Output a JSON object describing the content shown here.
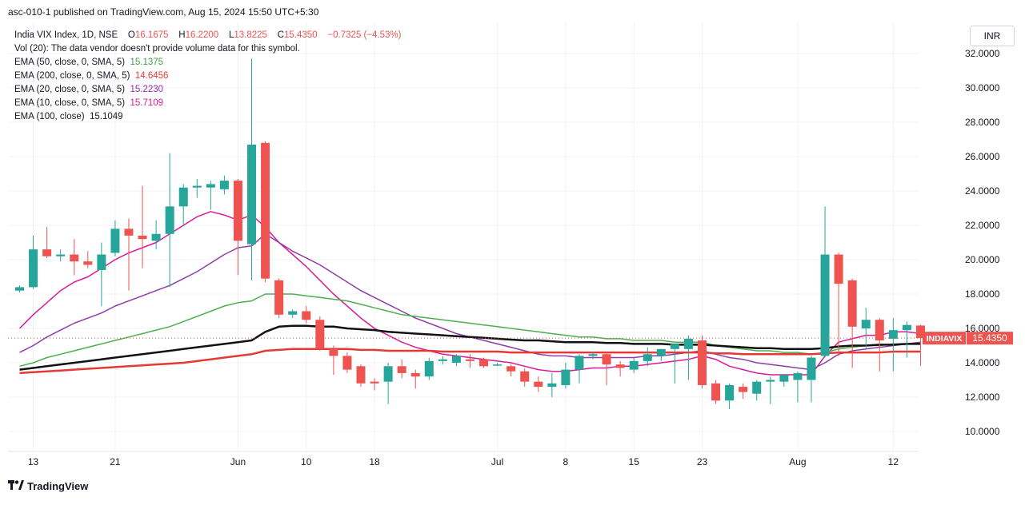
{
  "header": {
    "published": "asc-010-1 published on TradingView.com, Aug 15, 2024 15:50 UTC+5:30"
  },
  "legend": {
    "symbol": "India VIX Index, 1D, NSE",
    "ohlc": {
      "o_label": "O",
      "o": "16.1675",
      "h_label": "H",
      "h": "16.2200",
      "l_label": "L",
      "l": "13.8225",
      "c_label": "C",
      "c": "15.4350",
      "change": "−0.7325 (−4.53%)"
    },
    "volume_note": "Vol (20): The data vendor doesn't provide volume data for this symbol.",
    "indicators": [
      {
        "label": "EMA (50, close, 0, SMA, 5)",
        "value": "15.1375",
        "color": "#43a047"
      },
      {
        "label": "EMA (200, close, 0, SMA, 5)",
        "value": "14.6456",
        "color": "#e53935"
      },
      {
        "label": "EMA (20, close, 0, SMA, 5)",
        "value": "15.2230",
        "color": "#9c27b0"
      },
      {
        "label": "EMA (10, close, 0, SMA, 5)",
        "value": "15.7109",
        "color": "#d81b9a"
      },
      {
        "label": "EMA (100, close)",
        "value": "15.1049",
        "color": "#131722"
      }
    ]
  },
  "currency": "INR",
  "price_tag": {
    "symbol": "INDIAVIX",
    "value": "15.4350"
  },
  "footer": {
    "brand": "TradingView"
  },
  "colors": {
    "up": "#26a69a",
    "down": "#ef5350",
    "grid": "#f0f3fa",
    "tag": "#ef5350"
  },
  "chart_data": {
    "type": "candlestick",
    "y_axis": {
      "side": "right",
      "ylim": [
        9.0,
        32.8
      ],
      "ticks": [
        "32.0000",
        "30.0000",
        "28.0000",
        "26.0000",
        "24.0000",
        "22.0000",
        "20.0000",
        "18.0000",
        "16.0000",
        "14.0000",
        "12.0000",
        "10.0000"
      ],
      "tick_values": [
        32,
        30,
        28,
        26,
        24,
        22,
        20,
        18,
        16,
        14,
        12,
        10
      ]
    },
    "x_axis": {
      "tick_labels": [
        {
          "label": "13",
          "index": 1
        },
        {
          "label": "21",
          "index": 7
        },
        {
          "label": "Jun",
          "index": 16
        },
        {
          "label": "10",
          "index": 21
        },
        {
          "label": "18",
          "index": 26
        },
        {
          "label": "Jul",
          "index": 35
        },
        {
          "label": "8",
          "index": 40
        },
        {
          "label": "15",
          "index": 45
        },
        {
          "label": "23",
          "index": 50
        },
        {
          "label": "Aug",
          "index": 57
        },
        {
          "label": "12",
          "index": 64
        }
      ]
    },
    "grid": true,
    "candles": [
      {
        "o": 18.2,
        "h": 18.5,
        "l": 18.1,
        "c": 18.4
      },
      {
        "o": 18.4,
        "h": 21.4,
        "l": 18.3,
        "c": 20.6
      },
      {
        "o": 20.6,
        "h": 21.9,
        "l": 20.1,
        "c": 20.2
      },
      {
        "o": 20.2,
        "h": 20.6,
        "l": 19.9,
        "c": 20.3
      },
      {
        "o": 20.3,
        "h": 21.2,
        "l": 19.1,
        "c": 19.9
      },
      {
        "o": 19.9,
        "h": 20.5,
        "l": 19.5,
        "c": 19.7
      },
      {
        "o": 19.4,
        "h": 21.0,
        "l": 17.3,
        "c": 20.3
      },
      {
        "o": 20.4,
        "h": 22.3,
        "l": 20.2,
        "c": 21.8
      },
      {
        "o": 21.8,
        "h": 22.4,
        "l": 18.2,
        "c": 21.4
      },
      {
        "o": 21.4,
        "h": 24.3,
        "l": 19.5,
        "c": 21.2
      },
      {
        "o": 21.1,
        "h": 22.3,
        "l": 20.6,
        "c": 21.5
      },
      {
        "o": 21.5,
        "h": 26.2,
        "l": 18.4,
        "c": 23.1
      },
      {
        "o": 23.1,
        "h": 24.4,
        "l": 22.0,
        "c": 24.2
      },
      {
        "o": 24.2,
        "h": 24.7,
        "l": 23.6,
        "c": 24.3
      },
      {
        "o": 24.2,
        "h": 24.6,
        "l": 22.9,
        "c": 24.4
      },
      {
        "o": 24.1,
        "h": 24.9,
        "l": 23.8,
        "c": 24.6
      },
      {
        "o": 24.6,
        "h": 24.7,
        "l": 19.1,
        "c": 21.1
      },
      {
        "o": 20.9,
        "h": 31.7,
        "l": 18.8,
        "c": 26.7
      },
      {
        "o": 26.8,
        "h": 26.9,
        "l": 18.7,
        "c": 18.9
      },
      {
        "o": 18.8,
        "h": 18.9,
        "l": 16.6,
        "c": 16.8
      },
      {
        "o": 16.8,
        "h": 17.1,
        "l": 16.6,
        "c": 17.0
      },
      {
        "o": 17.0,
        "h": 17.3,
        "l": 16.3,
        "c": 16.5
      },
      {
        "o": 16.5,
        "h": 16.7,
        "l": 14.7,
        "c": 14.8
      },
      {
        "o": 14.8,
        "h": 15.0,
        "l": 13.3,
        "c": 14.4
      },
      {
        "o": 14.4,
        "h": 14.6,
        "l": 13.4,
        "c": 13.6
      },
      {
        "o": 13.8,
        "h": 13.9,
        "l": 12.6,
        "c": 12.8
      },
      {
        "o": 12.9,
        "h": 13.1,
        "l": 12.4,
        "c": 12.8
      },
      {
        "o": 12.9,
        "h": 14.0,
        "l": 11.6,
        "c": 13.8
      },
      {
        "o": 13.8,
        "h": 14.2,
        "l": 13.1,
        "c": 13.4
      },
      {
        "o": 13.4,
        "h": 13.6,
        "l": 12.5,
        "c": 13.2
      },
      {
        "o": 13.2,
        "h": 14.3,
        "l": 13.0,
        "c": 14.1
      },
      {
        "o": 14.1,
        "h": 14.4,
        "l": 13.9,
        "c": 14.2
      },
      {
        "o": 14.0,
        "h": 14.5,
        "l": 13.8,
        "c": 14.4
      },
      {
        "o": 14.2,
        "h": 14.5,
        "l": 13.7,
        "c": 14.1
      },
      {
        "o": 14.2,
        "h": 14.3,
        "l": 13.7,
        "c": 13.8
      },
      {
        "o": 13.9,
        "h": 14.0,
        "l": 13.8,
        "c": 13.9
      },
      {
        "o": 13.8,
        "h": 13.9,
        "l": 13.2,
        "c": 13.5
      },
      {
        "o": 13.5,
        "h": 13.7,
        "l": 12.6,
        "c": 12.9
      },
      {
        "o": 12.9,
        "h": 13.2,
        "l": 12.3,
        "c": 12.6
      },
      {
        "o": 12.6,
        "h": 13.4,
        "l": 12.0,
        "c": 12.8
      },
      {
        "o": 12.7,
        "h": 14.0,
        "l": 12.5,
        "c": 13.6
      },
      {
        "o": 13.6,
        "h": 14.5,
        "l": 12.8,
        "c": 14.4
      },
      {
        "o": 14.4,
        "h": 14.6,
        "l": 14.2,
        "c": 14.5
      },
      {
        "o": 14.5,
        "h": 14.6,
        "l": 12.7,
        "c": 13.9
      },
      {
        "o": 13.9,
        "h": 14.1,
        "l": 13.2,
        "c": 13.7
      },
      {
        "o": 13.6,
        "h": 14.3,
        "l": 13.4,
        "c": 14.1
      },
      {
        "o": 14.1,
        "h": 14.9,
        "l": 13.8,
        "c": 14.5
      },
      {
        "o": 14.4,
        "h": 14.8,
        "l": 14.1,
        "c": 14.8
      },
      {
        "o": 14.8,
        "h": 15.0,
        "l": 12.8,
        "c": 15.1
      },
      {
        "o": 14.8,
        "h": 15.6,
        "l": 13.0,
        "c": 15.4
      },
      {
        "o": 15.3,
        "h": 15.6,
        "l": 12.5,
        "c": 12.7
      },
      {
        "o": 12.8,
        "h": 13.0,
        "l": 11.6,
        "c": 11.8
      },
      {
        "o": 11.8,
        "h": 12.8,
        "l": 11.3,
        "c": 12.7
      },
      {
        "o": 12.6,
        "h": 12.8,
        "l": 11.9,
        "c": 12.3
      },
      {
        "o": 12.2,
        "h": 13.0,
        "l": 11.8,
        "c": 12.9
      },
      {
        "o": 12.9,
        "h": 13.2,
        "l": 11.6,
        "c": 13.0
      },
      {
        "o": 12.9,
        "h": 13.2,
        "l": 12.6,
        "c": 13.3
      },
      {
        "o": 13.0,
        "h": 13.5,
        "l": 11.7,
        "c": 13.4
      },
      {
        "o": 13.0,
        "h": 14.4,
        "l": 11.7,
        "c": 14.3
      },
      {
        "o": 14.4,
        "h": 23.1,
        "l": 14.3,
        "c": 20.3
      },
      {
        "o": 20.3,
        "h": 20.4,
        "l": 14.4,
        "c": 18.6
      },
      {
        "o": 18.8,
        "h": 18.9,
        "l": 13.7,
        "c": 16.1
      },
      {
        "o": 16.0,
        "h": 17.2,
        "l": 14.8,
        "c": 16.5
      },
      {
        "o": 16.5,
        "h": 16.6,
        "l": 13.5,
        "c": 15.3
      },
      {
        "o": 15.4,
        "h": 16.6,
        "l": 13.5,
        "c": 15.9
      },
      {
        "o": 15.9,
        "h": 16.4,
        "l": 14.3,
        "c": 16.2
      },
      {
        "o": 16.1675,
        "h": 16.22,
        "l": 13.8225,
        "c": 15.435
      }
    ],
    "ema_lines": [
      {
        "label": "EMA (10, close, 0, SMA, 5)",
        "color": "#d81b9a",
        "width": 1.5,
        "values": [
          16.0,
          16.8,
          17.5,
          18.2,
          18.7,
          19.0,
          19.5,
          20.0,
          20.4,
          20.7,
          21.0,
          21.5,
          22.0,
          22.5,
          22.8,
          22.6,
          22.3,
          22.6,
          21.9,
          21.0,
          20.3,
          19.6,
          18.8,
          18.0,
          17.3,
          16.6,
          16.0,
          15.6,
          15.2,
          14.9,
          14.7,
          14.5,
          14.4,
          14.3,
          14.2,
          14.1,
          14.0,
          13.8,
          13.6,
          13.5,
          13.5,
          13.6,
          13.7,
          13.7,
          13.8,
          13.8,
          13.9,
          14.0,
          14.1,
          14.2,
          14.4,
          14.2,
          13.8,
          13.6,
          13.4,
          13.3,
          13.3,
          13.3,
          13.3,
          14.4,
          15.2,
          15.4,
          15.6,
          15.6,
          15.8,
          15.8,
          15.7
        ]
      },
      {
        "label": "EMA (20, close, 0, SMA, 5)",
        "color": "#8e3ca8",
        "width": 1.5,
        "values": [
          14.6,
          15.0,
          15.5,
          15.9,
          16.3,
          16.6,
          16.9,
          17.3,
          17.6,
          17.9,
          18.2,
          18.5,
          18.9,
          19.3,
          19.8,
          20.3,
          20.7,
          20.8,
          21.5,
          21.0,
          20.5,
          20.1,
          19.7,
          19.2,
          18.7,
          18.2,
          17.8,
          17.4,
          17.0,
          16.6,
          16.3,
          16.0,
          15.7,
          15.5,
          15.3,
          15.1,
          14.9,
          14.7,
          14.5,
          14.4,
          14.4,
          14.3,
          14.3,
          14.3,
          14.3,
          14.3,
          14.4,
          14.4,
          14.5,
          14.6,
          14.7,
          14.5,
          14.3,
          14.2,
          14.0,
          13.9,
          13.8,
          13.7,
          13.6,
          14.0,
          14.5,
          14.7,
          14.8,
          14.9,
          15.0,
          15.1,
          15.2
        ]
      },
      {
        "label": "EMA (50, close, 0, SMA, 5)",
        "color": "#4caf50",
        "width": 1.5,
        "values": [
          13.8,
          14.0,
          14.3,
          14.5,
          14.7,
          14.9,
          15.1,
          15.3,
          15.5,
          15.7,
          15.9,
          16.1,
          16.4,
          16.7,
          17.0,
          17.3,
          17.5,
          17.6,
          18.0,
          18.0,
          18.0,
          17.9,
          17.8,
          17.7,
          17.6,
          17.4,
          17.2,
          17.0,
          16.8,
          16.7,
          16.6,
          16.5,
          16.4,
          16.3,
          16.2,
          16.1,
          16.0,
          15.9,
          15.8,
          15.7,
          15.6,
          15.5,
          15.5,
          15.4,
          15.4,
          15.3,
          15.3,
          15.3,
          15.2,
          15.2,
          15.2,
          15.0,
          14.9,
          14.8,
          14.7,
          14.7,
          14.6,
          14.6,
          14.5,
          14.6,
          14.8,
          14.9,
          15.0,
          15.0,
          15.1,
          15.1,
          15.1
        ]
      },
      {
        "label": "EMA (100, close)",
        "color": "#111111",
        "width": 2.5,
        "values": [
          13.6,
          13.7,
          13.8,
          13.9,
          14.0,
          14.1,
          14.2,
          14.3,
          14.4,
          14.5,
          14.6,
          14.7,
          14.8,
          14.9,
          15.0,
          15.1,
          15.2,
          15.3,
          15.8,
          16.1,
          16.15,
          16.15,
          16.1,
          16.1,
          16.0,
          15.95,
          15.9,
          15.8,
          15.75,
          15.7,
          15.65,
          15.6,
          15.55,
          15.5,
          15.45,
          15.4,
          15.35,
          15.3,
          15.3,
          15.25,
          15.2,
          15.2,
          15.2,
          15.15,
          15.15,
          15.1,
          15.1,
          15.1,
          15.05,
          15.05,
          15.05,
          15.0,
          14.95,
          14.9,
          14.85,
          14.85,
          14.8,
          14.8,
          14.8,
          14.85,
          14.95,
          15.0,
          15.0,
          15.05,
          15.05,
          15.1,
          15.1
        ]
      },
      {
        "label": "EMA (200, close, 0, SMA, 5)",
        "color": "#e53935",
        "width": 2.5,
        "values": [
          13.4,
          13.45,
          13.5,
          13.55,
          13.6,
          13.65,
          13.7,
          13.75,
          13.8,
          13.85,
          13.9,
          13.95,
          14.0,
          14.1,
          14.2,
          14.3,
          14.4,
          14.5,
          14.7,
          14.75,
          14.8,
          14.8,
          14.8,
          14.8,
          14.8,
          14.75,
          14.75,
          14.7,
          14.7,
          14.7,
          14.7,
          14.65,
          14.65,
          14.65,
          14.65,
          14.65,
          14.6,
          14.6,
          14.6,
          14.6,
          14.6,
          14.6,
          14.6,
          14.6,
          14.6,
          14.6,
          14.6,
          14.6,
          14.6,
          14.6,
          14.6,
          14.55,
          14.55,
          14.5,
          14.5,
          14.5,
          14.5,
          14.5,
          14.5,
          14.55,
          14.6,
          14.6,
          14.6,
          14.6,
          14.65,
          14.65,
          14.65
        ]
      }
    ],
    "last_price": 15.435,
    "last_price_dotted_line": true
  }
}
